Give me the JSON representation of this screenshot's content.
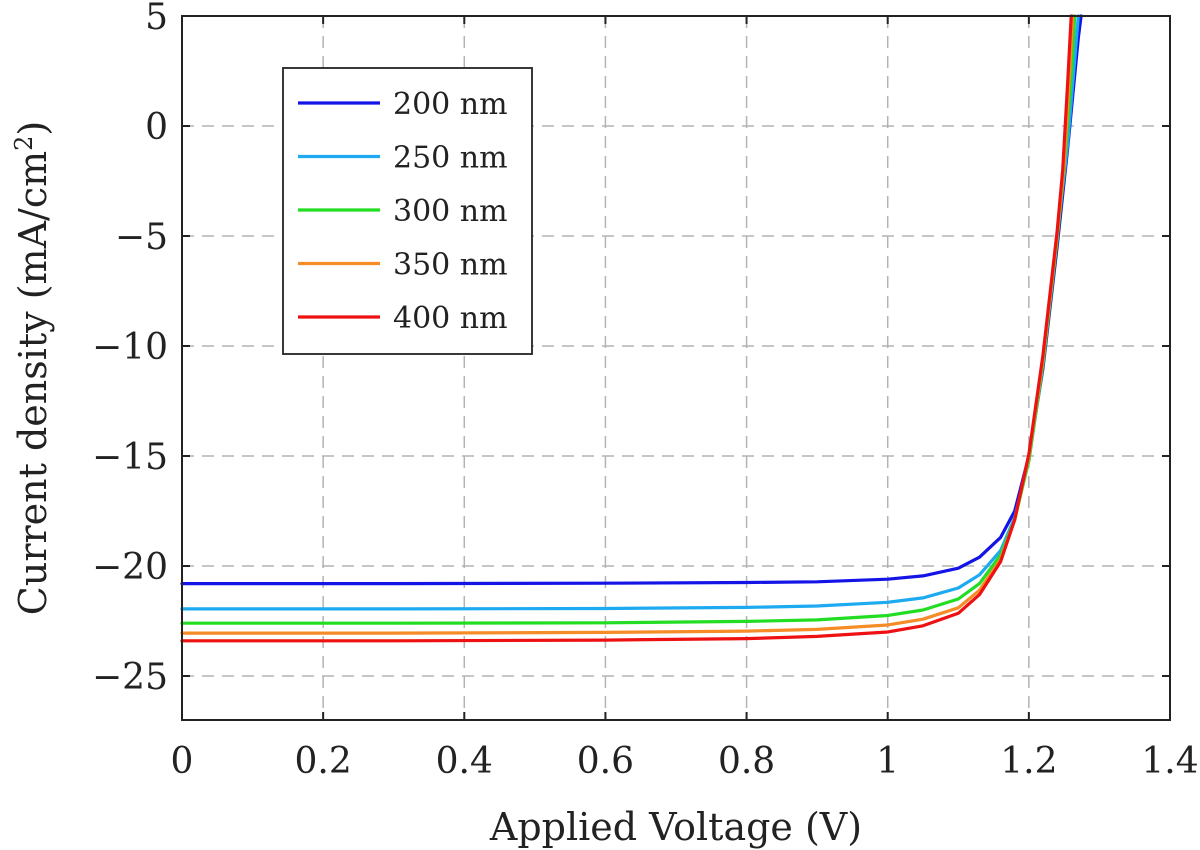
{
  "chart_data": {
    "type": "line",
    "xlabel": "Applied Voltage (V)",
    "ylabel_main": "Current density (mA/cm",
    "ylabel_sup": "2",
    "ylabel_close": ")",
    "xlim": [
      0,
      1.4
    ],
    "ylim": [
      -27,
      5
    ],
    "xticks": [
      0,
      0.2,
      0.4,
      0.6,
      0.8,
      1,
      1.2,
      1.4
    ],
    "xtick_labels": [
      "0",
      "0.2",
      "0.4",
      "0.6",
      "0.8",
      "1",
      "1.2",
      "1.4"
    ],
    "yticks": [
      5,
      0,
      -5,
      -10,
      -15,
      -20,
      -25
    ],
    "ytick_labels": [
      "5",
      "0",
      "−5",
      "−10",
      "−15",
      "−20",
      "−25"
    ],
    "grid": true,
    "legend_position": "top-left",
    "series": [
      {
        "name": "200 nm",
        "color": "#1414e6",
        "x": [
          0,
          0.3,
          0.6,
          0.8,
          0.9,
          1.0,
          1.05,
          1.1,
          1.13,
          1.16,
          1.18,
          1.2,
          1.22,
          1.24,
          1.255,
          1.27,
          1.274
        ],
        "y": [
          -20.8,
          -20.8,
          -20.78,
          -20.75,
          -20.72,
          -20.6,
          -20.45,
          -20.1,
          -19.6,
          -18.7,
          -17.5,
          -15.0,
          -11.0,
          -5.5,
          -1.0,
          4.0,
          5.0
        ]
      },
      {
        "name": "250 nm",
        "color": "#1eaaf0",
        "x": [
          0,
          0.3,
          0.6,
          0.8,
          0.9,
          1.0,
          1.05,
          1.1,
          1.13,
          1.16,
          1.18,
          1.2,
          1.22,
          1.24,
          1.255,
          1.265,
          1.27
        ],
        "y": [
          -21.95,
          -21.95,
          -21.93,
          -21.88,
          -21.82,
          -21.65,
          -21.45,
          -21.0,
          -20.4,
          -19.3,
          -17.8,
          -15.2,
          -10.8,
          -5.0,
          -0.8,
          3.0,
          5.0
        ]
      },
      {
        "name": "300 nm",
        "color": "#22dd22",
        "x": [
          0,
          0.3,
          0.6,
          0.8,
          0.9,
          1.0,
          1.05,
          1.1,
          1.13,
          1.16,
          1.18,
          1.2,
          1.22,
          1.24,
          1.25,
          1.26,
          1.265
        ],
        "y": [
          -22.6,
          -22.6,
          -22.58,
          -22.52,
          -22.45,
          -22.25,
          -22.0,
          -21.5,
          -20.8,
          -19.5,
          -17.9,
          -15.2,
          -10.8,
          -5.2,
          -2.0,
          2.2,
          5.0
        ]
      },
      {
        "name": "350 nm",
        "color": "#f58c28",
        "x": [
          0,
          0.3,
          0.6,
          0.8,
          0.9,
          1.0,
          1.05,
          1.1,
          1.13,
          1.16,
          1.18,
          1.2,
          1.22,
          1.24,
          1.25,
          1.258,
          1.262
        ],
        "y": [
          -23.05,
          -23.05,
          -23.02,
          -22.96,
          -22.88,
          -22.68,
          -22.42,
          -21.9,
          -21.1,
          -19.7,
          -17.9,
          -15.0,
          -10.6,
          -5.0,
          -1.8,
          2.6,
          5.0
        ]
      },
      {
        "name": "400 nm",
        "color": "#ee1111",
        "x": [
          0,
          0.3,
          0.6,
          0.8,
          0.9,
          1.0,
          1.05,
          1.1,
          1.13,
          1.16,
          1.18,
          1.2,
          1.22,
          1.24,
          1.248,
          1.255,
          1.26
        ],
        "y": [
          -23.4,
          -23.4,
          -23.37,
          -23.3,
          -23.2,
          -23.0,
          -22.72,
          -22.15,
          -21.3,
          -19.8,
          -17.9,
          -14.9,
          -10.4,
          -4.8,
          -2.0,
          2.0,
          5.0
        ]
      }
    ]
  }
}
